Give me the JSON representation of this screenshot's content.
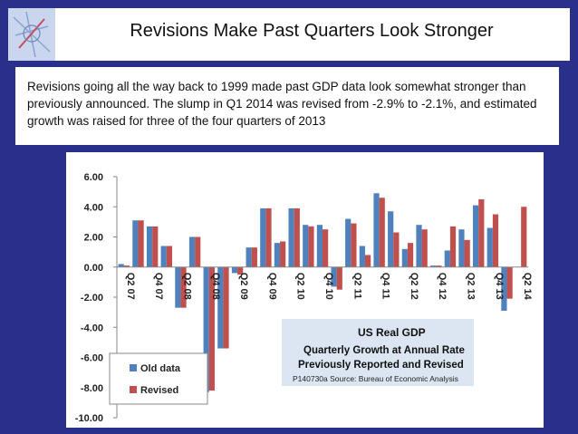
{
  "slide": {
    "title": "Revisions Make Past Quarters Look Stronger",
    "description": "Revisions going all the way back to 1999 made past GDP data look somewhat stronger than previously announced. The slump in Q1 2014 was revised from -2.9% to -2.1%, and estimated growth was raised for three of the four quarters of 2013"
  },
  "chart_data": {
    "type": "bar",
    "title": "US Real GDP",
    "subtitle_lines": [
      "Quarterly Growth at Annual Rate",
      "Previously Reported and Revised"
    ],
    "source": "P140730a Source: Bureau of Economic Analysis",
    "xlabel": "",
    "ylabel": "",
    "ylim": [
      -10,
      6
    ],
    "yticks": [
      "6.00",
      "4.00",
      "2.00",
      "0.00",
      "-2.00",
      "-4.00",
      "-6.00",
      "-8.00",
      "-10.00"
    ],
    "ytick_values": [
      6,
      4,
      2,
      0,
      -2,
      -4,
      -6,
      -8,
      -10
    ],
    "categories": [
      "Q2 07",
      "Q3 07",
      "Q4 07",
      "Q1 08",
      "Q2 08",
      "Q3 08",
      "Q4 08",
      "Q1 09",
      "Q2 09",
      "Q3 09",
      "Q4 09",
      "Q1 10",
      "Q2 10",
      "Q3 10",
      "Q4 10",
      "Q1 11",
      "Q2 11",
      "Q3 11",
      "Q4 11",
      "Q1 12",
      "Q2 12",
      "Q3 12",
      "Q4 12",
      "Q1 13",
      "Q2 13",
      "Q3 13",
      "Q4 13",
      "Q1 14",
      "Q2 14"
    ],
    "tick_labels": [
      "Q2 07",
      "Q4 07",
      "Q2 08",
      "Q4 08",
      "Q2 09",
      "Q4 09",
      "Q2 10",
      "Q4 10",
      "Q2 11",
      "Q4 11",
      "Q2 12",
      "Q4 12",
      "Q2 13",
      "Q4 13",
      "Q2 14"
    ],
    "series": [
      {
        "name": "Old data",
        "color": "#4f81bd",
        "values": [
          0.2,
          3.1,
          2.7,
          1.4,
          -2.7,
          2.0,
          -8.3,
          -5.4,
          -0.4,
          1.3,
          3.9,
          1.6,
          3.9,
          2.8,
          2.8,
          -1.3,
          3.2,
          1.4,
          4.9,
          3.7,
          1.2,
          2.8,
          0.1,
          1.1,
          2.5,
          4.1,
          2.6,
          -2.9,
          0
        ]
      },
      {
        "name": "Revised",
        "color": "#c0504d",
        "values": [
          0.1,
          3.1,
          2.7,
          1.4,
          -2.7,
          2.0,
          -8.2,
          -5.4,
          -0.5,
          1.3,
          3.9,
          1.7,
          3.9,
          2.7,
          2.5,
          -1.5,
          2.9,
          0.8,
          4.6,
          2.3,
          1.6,
          2.5,
          0.1,
          2.7,
          1.8,
          4.5,
          3.5,
          -2.1,
          4.0
        ]
      }
    ],
    "legend": {
      "position": "bottom-left",
      "entries": [
        "Old data",
        "Revised"
      ]
    },
    "grid": false
  }
}
